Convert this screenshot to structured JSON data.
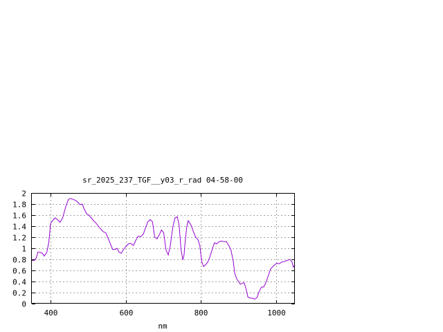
{
  "chart_data": {
    "type": "line",
    "title": "sr_2025_237_TGF__y03_r_rad 04-58-00",
    "xlabel": "nm",
    "ylabel": "",
    "xlim": [
      350,
      1050
    ],
    "ylim": [
      0,
      2
    ],
    "grid": true,
    "x_ticks": [
      400,
      600,
      800,
      1000
    ],
    "x_tick_labels": [
      "400",
      "600",
      "800",
      "1000"
    ],
    "y_ticks": [
      0,
      0.2,
      0.4,
      0.6,
      0.8,
      1,
      1.2,
      1.4,
      1.6,
      1.8,
      2
    ],
    "y_tick_labels": [
      "0",
      "0.2",
      "0.4",
      "0.6",
      "0.8",
      "1",
      "1.2",
      "1.4",
      "1.6",
      "1.8",
      "2"
    ],
    "series": [
      {
        "color": "#9400d3",
        "x": [
          350,
          356,
          362,
          366,
          370,
          378,
          383,
          390,
          395,
          400,
          405,
          412,
          418,
          425,
          432,
          440,
          447,
          452,
          458,
          465,
          470,
          478,
          484,
          490,
          496,
          502,
          508,
          514,
          520,
          527,
          533,
          540,
          547,
          553,
          559,
          565,
          571,
          577,
          582,
          588,
          594,
          600,
          607,
          613,
          620,
          627,
          633,
          640,
          647,
          653,
          659,
          665,
          671,
          677,
          683,
          689,
          695,
          701,
          707,
          713,
          719,
          725,
          731,
          737,
          742,
          747,
          752,
          755,
          758,
          762,
          766,
          770,
          775,
          780,
          786,
          792,
          797,
          802,
          807,
          812,
          818,
          824,
          830,
          836,
          842,
          848,
          855,
          862,
          868,
          874,
          880,
          886,
          890,
          895,
          900,
          905,
          910,
          915,
          920,
          925,
          931,
          937,
          943,
          949,
          955,
          961,
          967,
          973,
          979,
          985,
          990,
          996,
          1002,
          1008,
          1015,
          1022,
          1029,
          1036,
          1042,
          1046,
          1050
        ],
        "y": [
          0.78,
          0.78,
          0.83,
          0.93,
          0.93,
          0.91,
          0.86,
          0.93,
          1.1,
          1.45,
          1.5,
          1.55,
          1.52,
          1.47,
          1.55,
          1.75,
          1.88,
          1.9,
          1.89,
          1.87,
          1.85,
          1.79,
          1.8,
          1.7,
          1.62,
          1.6,
          1.55,
          1.5,
          1.46,
          1.4,
          1.35,
          1.3,
          1.28,
          1.18,
          1.08,
          0.98,
          0.98,
          1.0,
          0.93,
          0.91,
          0.98,
          1.03,
          1.08,
          1.09,
          1.05,
          1.15,
          1.22,
          1.21,
          1.26,
          1.38,
          1.48,
          1.52,
          1.48,
          1.2,
          1.17,
          1.24,
          1.33,
          1.28,
          0.97,
          0.88,
          1.07,
          1.38,
          1.55,
          1.57,
          1.42,
          0.98,
          0.79,
          0.88,
          1.12,
          1.38,
          1.5,
          1.46,
          1.4,
          1.3,
          1.2,
          1.16,
          1.05,
          0.76,
          0.67,
          0.7,
          0.75,
          0.85,
          0.98,
          1.1,
          1.08,
          1.12,
          1.13,
          1.12,
          1.12,
          1.05,
          0.97,
          0.76,
          0.55,
          0.45,
          0.4,
          0.35,
          0.37,
          0.38,
          0.27,
          0.12,
          0.1,
          0.1,
          0.08,
          0.11,
          0.22,
          0.3,
          0.3,
          0.38,
          0.5,
          0.62,
          0.66,
          0.7,
          0.73,
          0.72,
          0.75,
          0.76,
          0.78,
          0.8,
          0.76,
          0.66,
          0.7
        ]
      }
    ]
  }
}
